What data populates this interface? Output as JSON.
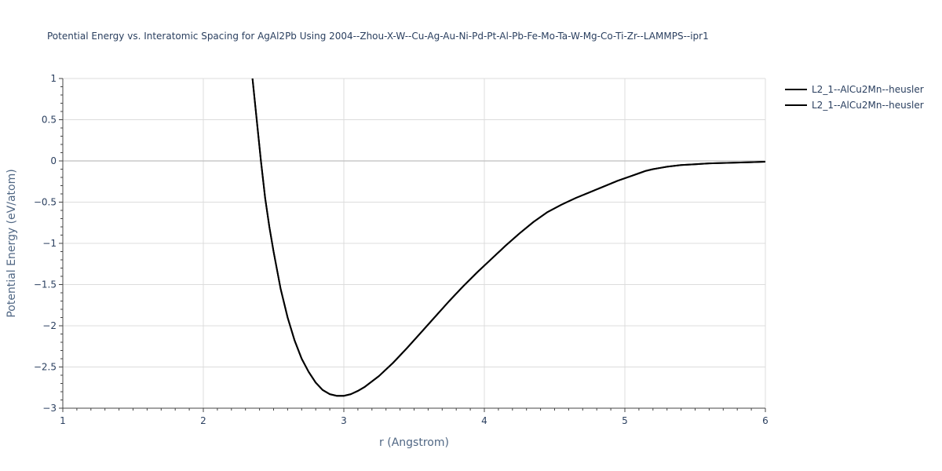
{
  "chart_data": {
    "type": "line",
    "title": "Potential Energy vs. Interatomic Spacing for AgAl2Pb Using 2004--Zhou-X-W--Cu-Ag-Au-Ni-Pd-Pt-Al-Pb-Fe-Mo-Ta-W-Mg-Co-Ti-Zr--LAMMPS--ipr1",
    "xlabel": "r (Angstrom)",
    "ylabel": "Potential Energy (eV/atom)",
    "xlim": [
      1,
      6
    ],
    "ylim": [
      -3,
      1
    ],
    "xticks": [
      1,
      2,
      3,
      4,
      5,
      6
    ],
    "xtick_labels": [
      "1",
      "2",
      "3",
      "4",
      "5",
      "6"
    ],
    "yticks": [
      -3,
      -2.5,
      -2,
      -1.5,
      -1,
      -0.5,
      0,
      0.5,
      1
    ],
    "ytick_labels": [
      "−3",
      "−2.5",
      "−2",
      "−1.5",
      "−1",
      "−0.5",
      "0",
      "0.5",
      "1"
    ],
    "grid": true,
    "legend_position": "top-right",
    "series": [
      {
        "name": "L2_1--AlCu2Mn--heusler",
        "color": "#000000",
        "x": [
          2.35,
          2.38,
          2.41,
          2.44,
          2.47,
          2.5,
          2.55,
          2.6,
          2.65,
          2.7,
          2.75,
          2.8,
          2.85,
          2.9,
          2.95,
          3.0,
          3.05,
          3.1,
          3.15,
          3.25,
          3.35,
          3.45,
          3.55,
          3.65,
          3.75,
          3.85,
          3.95,
          4.05,
          4.15,
          4.25,
          4.35,
          4.45,
          4.55,
          4.65,
          4.75,
          4.85,
          4.95,
          5.0,
          5.05,
          5.1,
          5.15,
          5.2,
          5.25,
          5.3,
          5.4,
          5.5,
          5.6,
          5.7,
          5.8,
          5.9,
          6.0
        ],
        "y": [
          1.0,
          0.5,
          0.0,
          -0.45,
          -0.8,
          -1.1,
          -1.55,
          -1.9,
          -2.18,
          -2.4,
          -2.56,
          -2.69,
          -2.78,
          -2.83,
          -2.85,
          -2.85,
          -2.83,
          -2.79,
          -2.74,
          -2.61,
          -2.45,
          -2.27,
          -2.08,
          -1.89,
          -1.7,
          -1.52,
          -1.35,
          -1.19,
          -1.03,
          -0.88,
          -0.74,
          -0.62,
          -0.53,
          -0.45,
          -0.38,
          -0.31,
          -0.24,
          -0.21,
          -0.18,
          -0.15,
          -0.12,
          -0.1,
          -0.085,
          -0.07,
          -0.05,
          -0.04,
          -0.03,
          -0.025,
          -0.02,
          -0.015,
          -0.01
        ]
      },
      {
        "name": "L2_1--AlCu2Mn--heusler",
        "color": "#000000",
        "x": [
          2.35,
          2.38,
          2.41,
          2.44,
          2.47,
          2.5,
          2.55,
          2.6,
          2.65,
          2.7,
          2.75,
          2.8,
          2.85,
          2.9,
          2.95,
          3.0,
          3.05,
          3.1,
          3.15,
          3.25,
          3.35,
          3.45,
          3.55,
          3.65,
          3.75,
          3.85,
          3.95,
          4.05,
          4.15,
          4.25,
          4.35,
          4.45,
          4.55,
          4.65,
          4.75,
          4.85,
          4.95,
          5.0,
          5.05,
          5.1,
          5.15,
          5.2,
          5.25,
          5.3,
          5.4,
          5.5,
          5.6,
          5.7,
          5.8,
          5.9,
          6.0
        ],
        "y": [
          1.0,
          0.5,
          0.0,
          -0.45,
          -0.8,
          -1.1,
          -1.55,
          -1.9,
          -2.18,
          -2.4,
          -2.56,
          -2.69,
          -2.78,
          -2.83,
          -2.85,
          -2.85,
          -2.83,
          -2.79,
          -2.74,
          -2.61,
          -2.45,
          -2.27,
          -2.08,
          -1.89,
          -1.7,
          -1.52,
          -1.35,
          -1.19,
          -1.03,
          -0.88,
          -0.74,
          -0.62,
          -0.53,
          -0.45,
          -0.38,
          -0.31,
          -0.24,
          -0.21,
          -0.18,
          -0.15,
          -0.12,
          -0.1,
          -0.085,
          -0.07,
          -0.05,
          -0.04,
          -0.03,
          -0.025,
          -0.02,
          -0.015,
          -0.01
        ]
      }
    ]
  }
}
